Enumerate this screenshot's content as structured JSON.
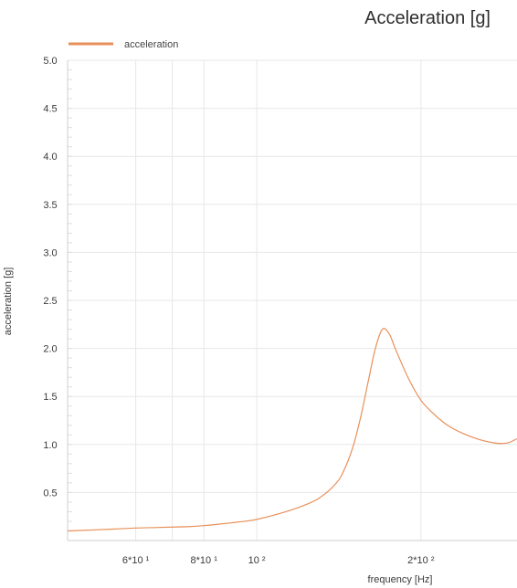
{
  "chart_data": {
    "type": "line",
    "title": "Acceleration [g]",
    "xlabel": "frequency [Hz]",
    "ylabel": "acceleration [g]",
    "x_scale": "log",
    "xlim": [
      45,
      300
    ],
    "ylim": [
      0,
      5
    ],
    "grid": true,
    "legend_position": "top-left",
    "x_ticks": [
      {
        "value": 60,
        "label": "6*10 ¹"
      },
      {
        "value": 80,
        "label": "8*10 ¹"
      },
      {
        "value": 100,
        "label": "10 ²"
      },
      {
        "value": 200,
        "label": "2*10 ²"
      }
    ],
    "x_grid_values": [
      60,
      70,
      80,
      100,
      200
    ],
    "y_ticks": [
      {
        "value": 0.5,
        "label": "0.5"
      },
      {
        "value": 1.0,
        "label": "1.0"
      },
      {
        "value": 1.5,
        "label": "1.5"
      },
      {
        "value": 2.0,
        "label": "2.0"
      },
      {
        "value": 2.5,
        "label": "2.5"
      },
      {
        "value": 3.0,
        "label": "3.0"
      },
      {
        "value": 3.5,
        "label": "3.5"
      },
      {
        "value": 4.0,
        "label": "4.0"
      },
      {
        "value": 4.5,
        "label": "4.5"
      },
      {
        "value": 5.0,
        "label": "5.0"
      }
    ],
    "series": [
      {
        "name": "acceleration",
        "color": "#e8905a",
        "x": [
          45,
          50,
          55,
          60,
          65,
          70,
          75,
          80,
          85,
          90,
          95,
          100,
          110,
          120,
          130,
          140,
          145,
          150,
          155,
          160,
          165,
          170,
          175,
          180,
          190,
          200,
          210,
          220,
          230,
          240,
          250,
          260,
          270,
          280,
          290,
          300
        ],
        "y": [
          0.1,
          0.11,
          0.12,
          0.13,
          0.135,
          0.14,
          0.145,
          0.155,
          0.17,
          0.185,
          0.2,
          0.22,
          0.28,
          0.35,
          0.44,
          0.6,
          0.75,
          0.97,
          1.28,
          1.65,
          2.0,
          2.2,
          2.15,
          1.98,
          1.68,
          1.46,
          1.33,
          1.23,
          1.16,
          1.11,
          1.07,
          1.04,
          1.02,
          1.01,
          1.02,
          1.06
        ]
      }
    ]
  }
}
